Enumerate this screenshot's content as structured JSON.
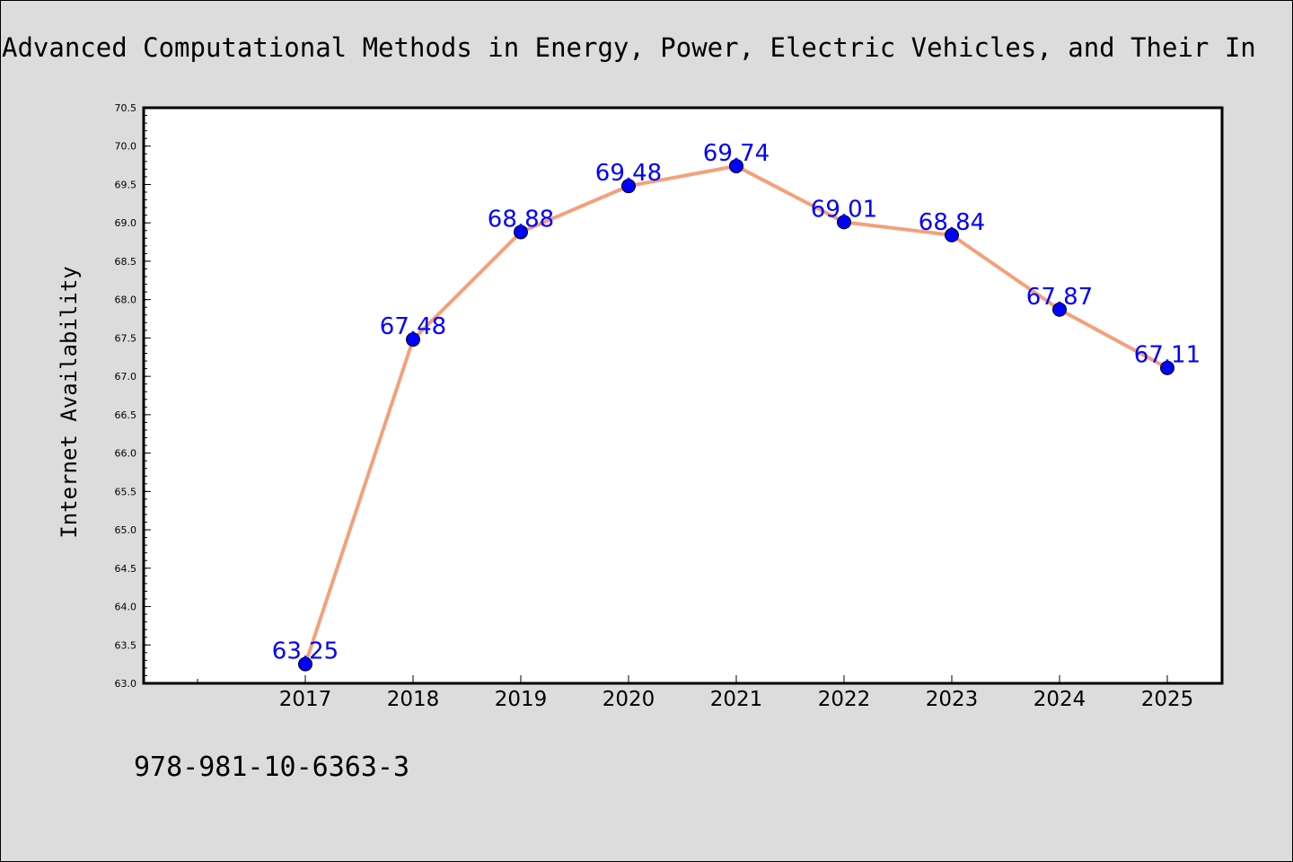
{
  "chart_data": {
    "type": "line",
    "title": "Advanced Computational Methods in Energy, Power, Electric Vehicles, and Their In",
    "xlabel": "",
    "ylabel": "Internet Availability",
    "categories": [
      "2017",
      "2018",
      "2019",
      "2020",
      "2021",
      "2022",
      "2023",
      "2024",
      "2025"
    ],
    "series": [
      {
        "values": [
          63.25,
          67.48,
          68.88,
          69.48,
          69.74,
          69.01,
          68.84,
          67.87,
          67.11
        ],
        "line_color": "#f4a07a",
        "marker_color": "#0000ff"
      }
    ],
    "data_labels": [
      "63.25",
      "67.48",
      "68.88",
      "69.48",
      "69.74",
      "69.01",
      "68.84",
      "67.87",
      "67.11"
    ],
    "ylim": [
      63.0,
      70.5
    ],
    "yticks": [
      "63.0",
      "63.5",
      "64.0",
      "64.5",
      "65.0",
      "65.5",
      "66.0",
      "66.5",
      "67.0",
      "67.5",
      "68.0",
      "68.5",
      "69.0",
      "69.5",
      "70.0",
      "70.5"
    ],
    "grid": false,
    "legend": "none"
  },
  "footer": {
    "isbn": "978-981-10-6363-3"
  },
  "colors": {
    "background": "#dcdcdc",
    "plot_area": "#ffffff",
    "label": "#0000ff"
  }
}
